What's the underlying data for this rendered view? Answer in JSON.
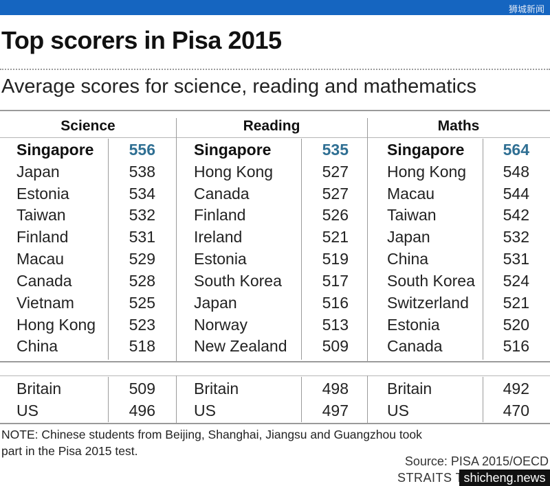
{
  "watermark_top": "狮城新闻",
  "title": "Top scorers in Pisa 2015",
  "subtitle": "Average scores for science, reading and mathematics",
  "columns": [
    {
      "label": "Science",
      "rows": [
        [
          "Singapore",
          "556"
        ],
        [
          "Japan",
          "538"
        ],
        [
          "Estonia",
          "534"
        ],
        [
          "Taiwan",
          "532"
        ],
        [
          "Finland",
          "531"
        ],
        [
          "Macau",
          "529"
        ],
        [
          "Canada",
          "528"
        ],
        [
          "Vietnam",
          "525"
        ],
        [
          "Hong Kong",
          "523"
        ],
        [
          "China",
          "518"
        ]
      ],
      "extra": [
        [
          "Britain",
          "509"
        ],
        [
          "US",
          "496"
        ]
      ]
    },
    {
      "label": "Reading",
      "rows": [
        [
          "Singapore",
          "535"
        ],
        [
          "Hong Kong",
          "527"
        ],
        [
          "Canada",
          "527"
        ],
        [
          "Finland",
          "526"
        ],
        [
          "Ireland",
          "521"
        ],
        [
          "Estonia",
          "519"
        ],
        [
          "South Korea",
          "517"
        ],
        [
          "Japan",
          "516"
        ],
        [
          "Norway",
          "513"
        ],
        [
          "New Zealand",
          "509"
        ]
      ],
      "extra": [
        [
          "Britain",
          "498"
        ],
        [
          "US",
          "497"
        ]
      ]
    },
    {
      "label": "Maths",
      "rows": [
        [
          "Singapore",
          "564"
        ],
        [
          "Hong Kong",
          "548"
        ],
        [
          "Macau",
          "544"
        ],
        [
          "Taiwan",
          "542"
        ],
        [
          "Japan",
          "532"
        ],
        [
          "China",
          "531"
        ],
        [
          "South Korea",
          "524"
        ],
        [
          "Switzerland",
          "521"
        ],
        [
          "Estonia",
          "520"
        ],
        [
          "Canada",
          "516"
        ]
      ],
      "extra": [
        [
          "Britain",
          "492"
        ],
        [
          "US",
          "470"
        ]
      ]
    }
  ],
  "note": "NOTE: Chinese students from Beijing, Shanghai, Jiangsu and Guangzhou took part in the Pisa 2015 test.",
  "source": "Source: PISA 2015/OECD",
  "brand": "STRAITS TI",
  "watermark_badge": "shicheng.news",
  "colors": {
    "topbar": "#1565c0",
    "highlight": "#2f6f93"
  }
}
